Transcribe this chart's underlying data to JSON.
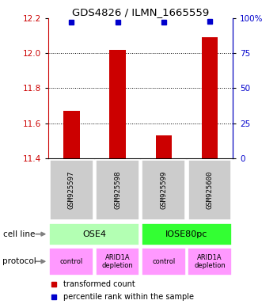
{
  "title": "GDS4826 / ILMN_1665559",
  "samples": [
    "GSM925597",
    "GSM925598",
    "GSM925599",
    "GSM925600"
  ],
  "bar_values": [
    11.67,
    12.02,
    11.53,
    12.09
  ],
  "dot_values": [
    97,
    97,
    97,
    98
  ],
  "ylim_left": [
    11.4,
    12.2
  ],
  "ylim_right": [
    0,
    100
  ],
  "yticks_left": [
    11.4,
    11.6,
    11.8,
    12.0,
    12.2
  ],
  "yticks_right": [
    0,
    25,
    50,
    75,
    100
  ],
  "bar_color": "#cc0000",
  "dot_color": "#0000cc",
  "cell_line_labels": [
    "OSE4",
    "IOSE80pc"
  ],
  "cell_line_spans": [
    [
      0,
      1
    ],
    [
      2,
      3
    ]
  ],
  "cell_line_colors": [
    "#b3ffb3",
    "#33ff33"
  ],
  "protocol_labels": [
    "control",
    "ARID1A\ndepletion",
    "control",
    "ARID1A\ndepletion"
  ],
  "protocol_color": "#ff99ff",
  "sample_box_color": "#cccccc",
  "legend_bar_label": "transformed count",
  "legend_dot_label": "percentile rank within the sample",
  "cell_line_row_label": "cell line",
  "protocol_row_label": "protocol",
  "background_color": "#ffffff"
}
